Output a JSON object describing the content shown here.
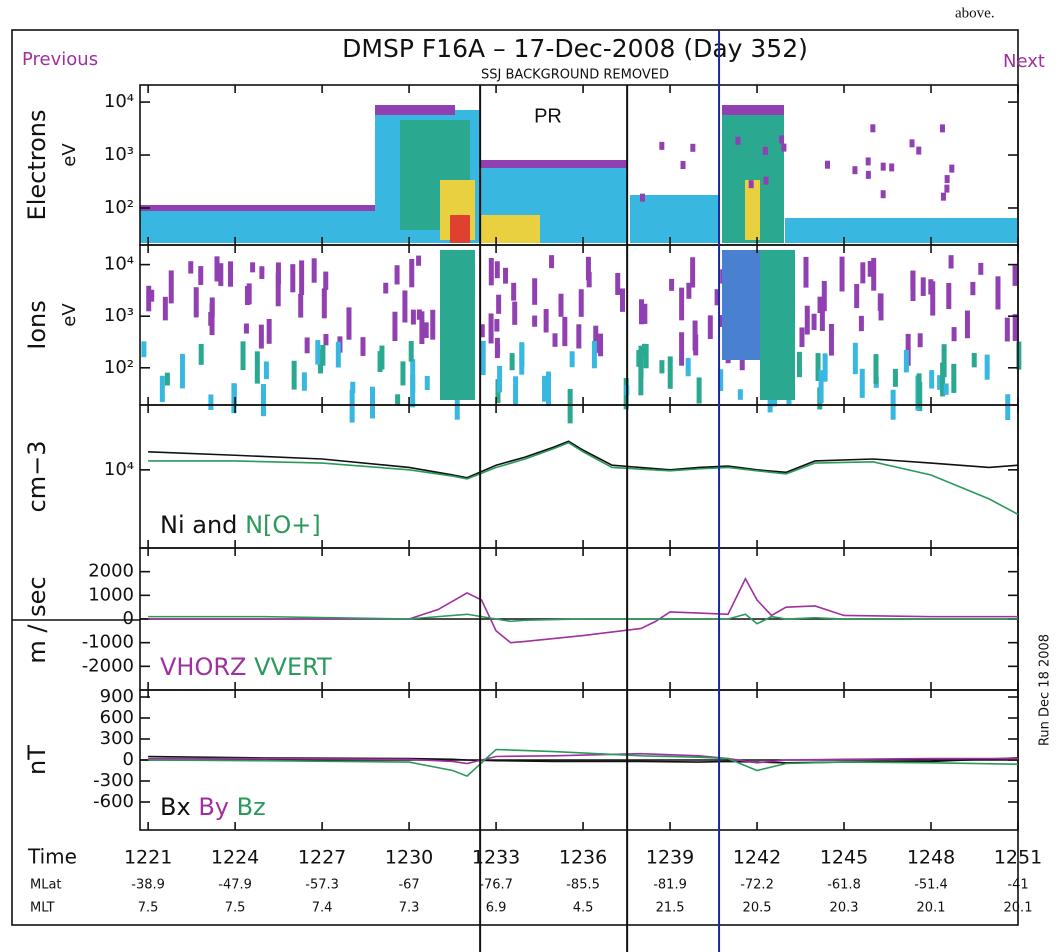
{
  "header": {
    "note": "above.",
    "previous": "Previous",
    "next": "Next",
    "title": "DMSP F16A – 17-Dec-2008 (Day 352)",
    "subtitle": "SSJ BACKGROUND REMOVED",
    "annotation": "PR",
    "run_label": "Run Dec 18 2008"
  },
  "chart_data": [
    {
      "type": "spectrogram",
      "ylabel": "Electrons",
      "yunit": "eV",
      "log": true,
      "ylim": [
        20,
        21000
      ],
      "yticks": [
        {
          "value": 10000,
          "label": "10⁴"
        },
        {
          "value": 1000,
          "label": "10³"
        },
        {
          "value": 100,
          "label": "10²"
        }
      ]
    },
    {
      "type": "spectrogram",
      "ylabel": "Ions",
      "yunit": "eV",
      "log": true,
      "ylim": [
        19,
        24000
      ],
      "yticks": [
        {
          "value": 10000,
          "label": "10⁴"
        },
        {
          "value": 1000,
          "label": "10³"
        },
        {
          "value": 100,
          "label": "10²"
        }
      ]
    },
    {
      "type": "line",
      "ylabel": "cm−3",
      "log": true,
      "ylim": [
        2000,
        38000
      ],
      "yticks": [
        {
          "value": 10000,
          "label": "10⁴"
        }
      ],
      "legend_joiner": "and",
      "x": [
        1221,
        1224,
        1227,
        1230,
        1231.5,
        1232,
        1233,
        1234,
        1235,
        1235.5,
        1236,
        1237,
        1239,
        1240,
        1241,
        1242,
        1243,
        1244,
        1246,
        1248,
        1250,
        1251
      ],
      "series": [
        {
          "name": "Ni",
          "color": "#111111",
          "values": [
            14500,
            13500,
            12500,
            10500,
            9000,
            8500,
            11000,
            13000,
            16000,
            18000,
            15000,
            11000,
            10000,
            10500,
            10800,
            10000,
            9500,
            12000,
            12500,
            11500,
            10500,
            11000
          ]
        },
        {
          "name": "N[O+]",
          "color": "#2a9a5a",
          "values": [
            12000,
            12000,
            11500,
            10000,
            8800,
            8300,
            10500,
            12500,
            15500,
            17500,
            14500,
            10500,
            9800,
            10200,
            10500,
            9800,
            9200,
            11500,
            11800,
            9000,
            5500,
            4000
          ]
        }
      ]
    },
    {
      "type": "line",
      "ylabel": "m / sec",
      "log": false,
      "ylim": [
        -3000,
        3000
      ],
      "yticks": [
        2000,
        1000,
        0,
        -1000,
        -2000
      ],
      "x": [
        1221,
        1225,
        1230,
        1231,
        1232,
        1232.5,
        1233,
        1233.5,
        1234,
        1236,
        1238,
        1238.5,
        1239,
        1240,
        1241,
        1241.6,
        1242,
        1242.5,
        1243,
        1244,
        1245,
        1248,
        1251
      ],
      "series": [
        {
          "name": "VHORZ",
          "color": "#a030a0",
          "values": [
            0,
            0,
            0,
            400,
            1100,
            800,
            -500,
            -1000,
            -950,
            -700,
            -400,
            -100,
            300,
            250,
            200,
            1700,
            800,
            150,
            500,
            550,
            150,
            100,
            100
          ]
        },
        {
          "name": "VVERT",
          "color": "#2a9a5a",
          "values": [
            100,
            100,
            0,
            100,
            200,
            100,
            0,
            -100,
            -50,
            0,
            0,
            0,
            0,
            0,
            0,
            200,
            -200,
            100,
            0,
            50,
            0,
            0,
            0
          ]
        }
      ]
    },
    {
      "type": "line",
      "ylabel": "nT",
      "log": false,
      "ylim": [
        -1000,
        1000
      ],
      "yticks": [
        900,
        600,
        300,
        0,
        -300,
        -600
      ],
      "x": [
        1221,
        1225,
        1230,
        1231.5,
        1232,
        1233,
        1235,
        1238,
        1240,
        1241,
        1242,
        1243,
        1245,
        1248,
        1251
      ],
      "series": [
        {
          "name": "Bx",
          "color": "#111111",
          "values": [
            50,
            30,
            20,
            10,
            0,
            -10,
            -20,
            -20,
            -30,
            -20,
            -30,
            -40,
            -30,
            -20,
            30
          ]
        },
        {
          "name": "By",
          "color": "#a030a0",
          "values": [
            20,
            20,
            10,
            -20,
            -50,
            50,
            60,
            90,
            60,
            20,
            -40,
            0,
            10,
            20,
            20
          ]
        },
        {
          "name": "Bz",
          "color": "#2a9a5a",
          "values": [
            0,
            -10,
            -30,
            -150,
            -230,
            150,
            120,
            60,
            40,
            20,
            -150,
            -50,
            -30,
            -40,
            -60
          ]
        }
      ]
    }
  ],
  "time_axis": {
    "xlim": [
      1220.72,
      1251
    ],
    "rows": [
      {
        "label": "Time",
        "values": [
          1221,
          1224,
          1227,
          1230,
          1233,
          1236,
          1239,
          1242,
          1245,
          1248,
          1251
        ]
      },
      {
        "label": "MLat",
        "values": [
          -38.9,
          -47.9,
          -57.3,
          -67.0,
          -76.7,
          -85.5,
          -81.9,
          -72.2,
          -61.8,
          -51.4,
          -41.0
        ]
      },
      {
        "label": "MLT",
        "values": [
          7.5,
          7.5,
          7.4,
          7.3,
          6.9,
          4.5,
          21.5,
          20.5,
          20.3,
          20.1,
          20.1
        ]
      }
    ]
  },
  "markers": [
    {
      "x": 1232.45,
      "color": "#111111"
    },
    {
      "x": 1237.52,
      "color": "#111111"
    },
    {
      "x": 1240.69,
      "color": "#1a2a9a"
    }
  ]
}
